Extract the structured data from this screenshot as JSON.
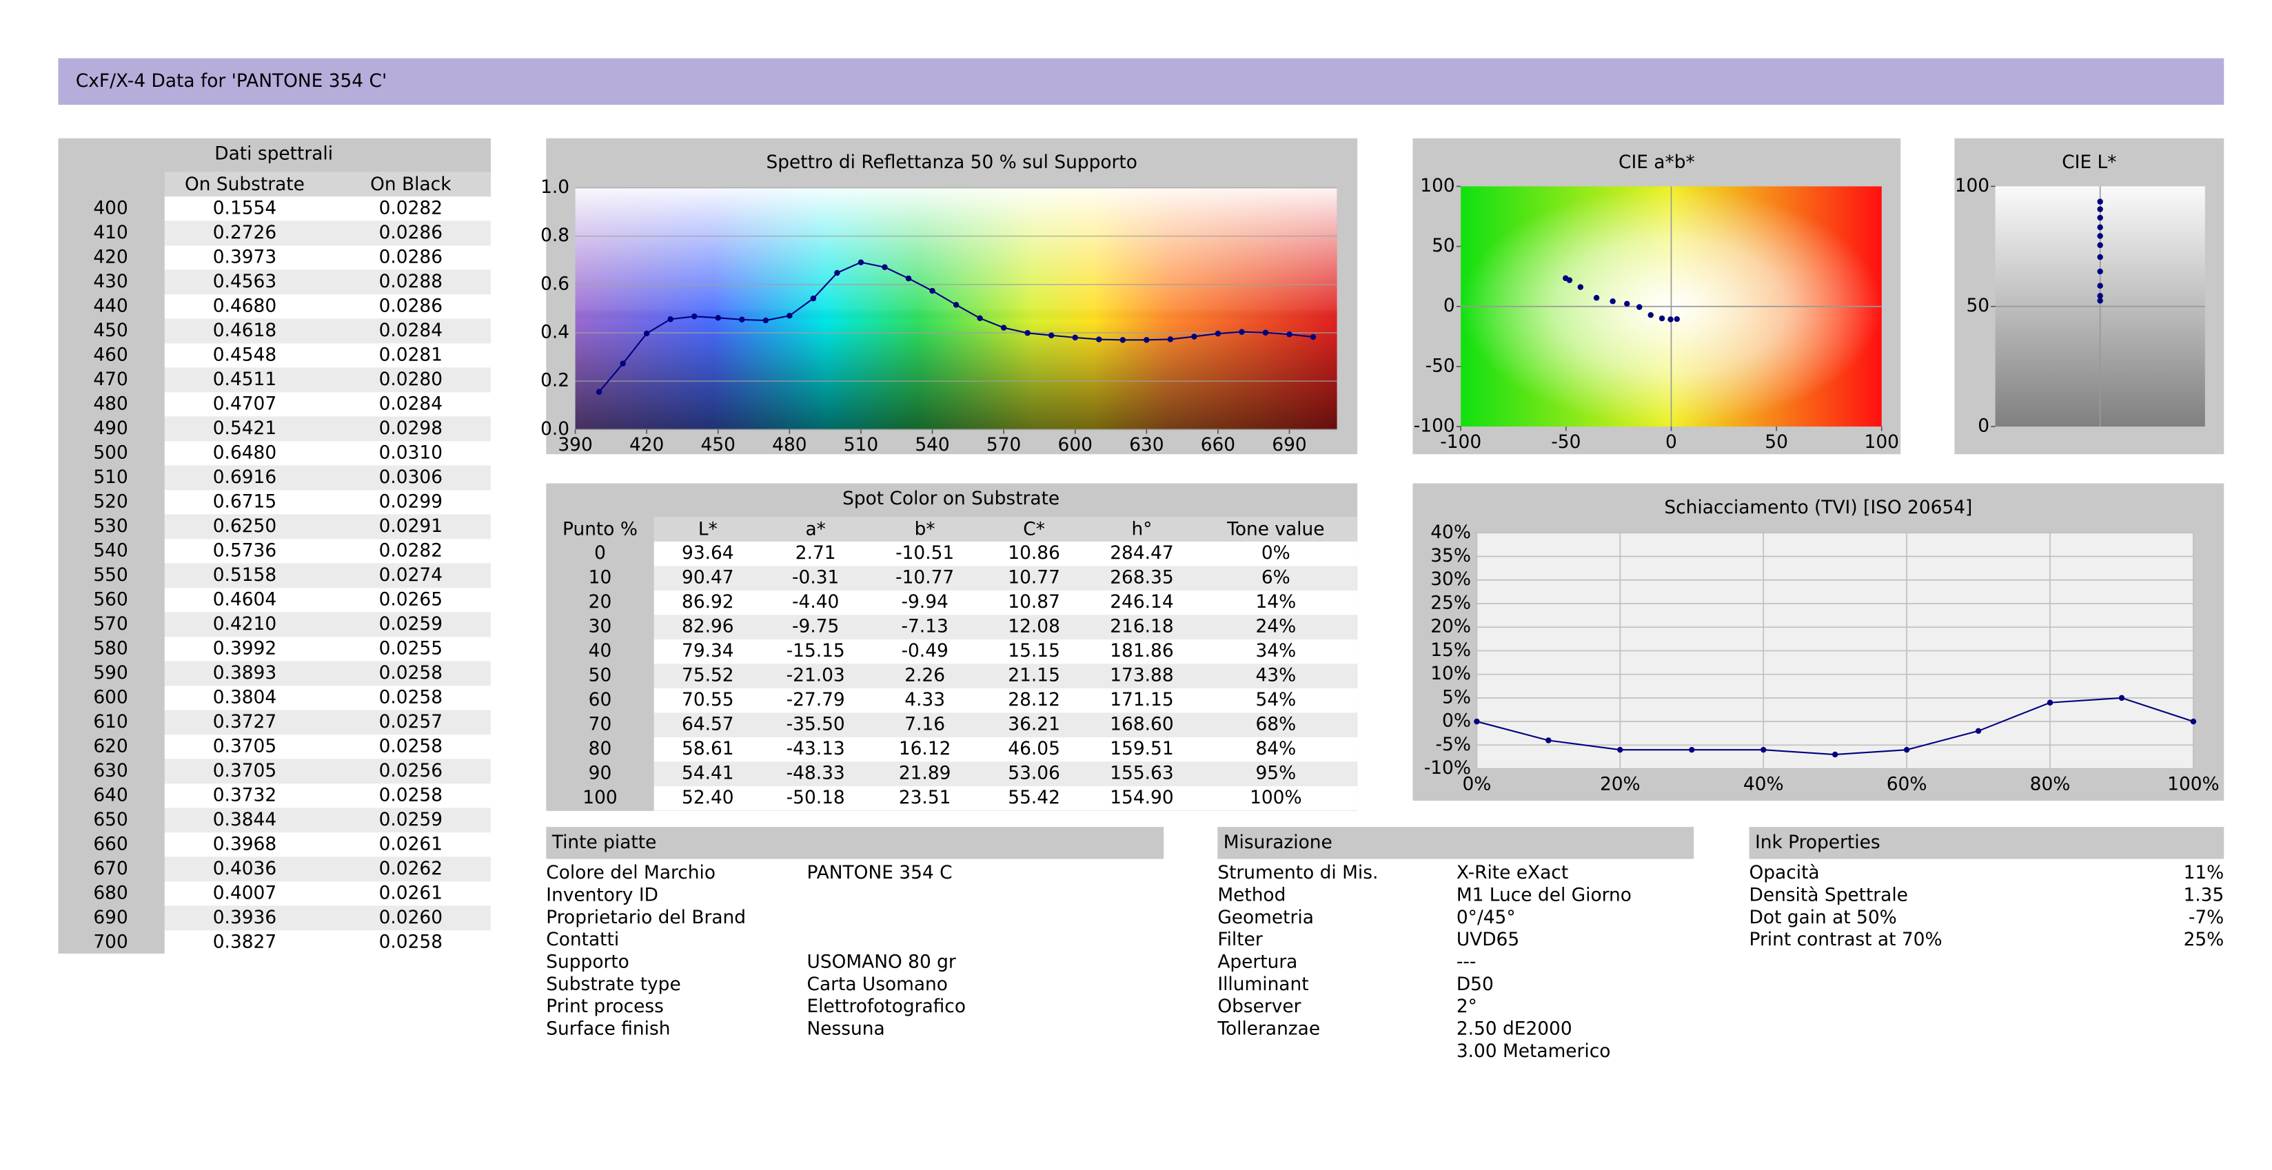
{
  "header": {
    "title": "CxF/X-4 Data for 'PANTONE 354 C'"
  },
  "spectral_table": {
    "title": "Dati spettrali",
    "columns": [
      "On Substrate",
      "On Black"
    ],
    "rows": [
      [
        "400",
        "0.1554",
        "0.0282"
      ],
      [
        "410",
        "0.2726",
        "0.0286"
      ],
      [
        "420",
        "0.3973",
        "0.0286"
      ],
      [
        "430",
        "0.4563",
        "0.0288"
      ],
      [
        "440",
        "0.4680",
        "0.0286"
      ],
      [
        "450",
        "0.4618",
        "0.0284"
      ],
      [
        "460",
        "0.4548",
        "0.0281"
      ],
      [
        "470",
        "0.4511",
        "0.0280"
      ],
      [
        "480",
        "0.4707",
        "0.0284"
      ],
      [
        "490",
        "0.5421",
        "0.0298"
      ],
      [
        "500",
        "0.6480",
        "0.0310"
      ],
      [
        "510",
        "0.6916",
        "0.0306"
      ],
      [
        "520",
        "0.6715",
        "0.0299"
      ],
      [
        "530",
        "0.6250",
        "0.0291"
      ],
      [
        "540",
        "0.5736",
        "0.0282"
      ],
      [
        "550",
        "0.5158",
        "0.0274"
      ],
      [
        "560",
        "0.4604",
        "0.0265"
      ],
      [
        "570",
        "0.4210",
        "0.0259"
      ],
      [
        "580",
        "0.3992",
        "0.0255"
      ],
      [
        "590",
        "0.3893",
        "0.0258"
      ],
      [
        "600",
        "0.3804",
        "0.0258"
      ],
      [
        "610",
        "0.3727",
        "0.0257"
      ],
      [
        "620",
        "0.3705",
        "0.0258"
      ],
      [
        "630",
        "0.3705",
        "0.0256"
      ],
      [
        "640",
        "0.3732",
        "0.0258"
      ],
      [
        "650",
        "0.3844",
        "0.0259"
      ],
      [
        "660",
        "0.3968",
        "0.0261"
      ],
      [
        "670",
        "0.4036",
        "0.0262"
      ],
      [
        "680",
        "0.4007",
        "0.0261"
      ],
      [
        "690",
        "0.3936",
        "0.0260"
      ],
      [
        "700",
        "0.3827",
        "0.0258"
      ]
    ]
  },
  "chart_data": [
    {
      "type": "line",
      "title": "Spettro di Reflettanza 50 % sul Supporto",
      "x": [
        400,
        410,
        420,
        430,
        440,
        450,
        460,
        470,
        480,
        490,
        500,
        510,
        520,
        530,
        540,
        550,
        560,
        570,
        580,
        590,
        600,
        610,
        620,
        630,
        640,
        650,
        660,
        670,
        680,
        690,
        700
      ],
      "values": [
        0.1554,
        0.2726,
        0.3973,
        0.4563,
        0.468,
        0.4618,
        0.4548,
        0.4511,
        0.4707,
        0.5421,
        0.648,
        0.6916,
        0.6715,
        0.625,
        0.5736,
        0.5158,
        0.4604,
        0.421,
        0.3992,
        0.3893,
        0.3804,
        0.3727,
        0.3705,
        0.3705,
        0.3732,
        0.3844,
        0.3968,
        0.4036,
        0.4007,
        0.3936,
        0.3827
      ],
      "xlim": [
        390,
        710
      ],
      "xticks": [
        390,
        420,
        450,
        480,
        510,
        540,
        570,
        600,
        630,
        660,
        690
      ],
      "ylim": [
        0,
        1
      ],
      "yticks": [
        {
          "value": 0,
          "label": "0.0"
        },
        0.2,
        0.4,
        0.6,
        0.8,
        {
          "value": 1,
          "label": "1.0"
        }
      ],
      "color": "#000080",
      "grid": true,
      "background": "spectrum"
    },
    {
      "type": "scatter",
      "title": "CIE a*b*",
      "x": [
        2.71,
        -0.31,
        -4.4,
        -9.75,
        -15.15,
        -21.03,
        -27.79,
        -35.5,
        -43.13,
        -48.33,
        -50.18
      ],
      "values": [
        -10.51,
        -10.77,
        -9.94,
        -7.13,
        -0.49,
        2.26,
        4.33,
        7.16,
        16.12,
        21.89,
        23.51
      ],
      "xlim": [
        -100,
        100
      ],
      "xticks": [
        -100,
        -50,
        0,
        50,
        100
      ],
      "ylim": [
        -100,
        100
      ],
      "yticks": [
        100,
        50,
        0,
        -50,
        -100
      ],
      "color": "#000080",
      "grid": false,
      "background": "ab"
    },
    {
      "type": "strip",
      "title": "CIE L*",
      "values": [
        93.64,
        90.47,
        86.92,
        82.96,
        79.34,
        75.52,
        70.55,
        64.57,
        58.61,
        54.41,
        52.4
      ],
      "ylim": [
        0,
        100
      ],
      "yticks": [
        100,
        50,
        0
      ],
      "color": "#000080",
      "grid": false,
      "background": "lightness"
    },
    {
      "type": "line",
      "title": "Schiacciamento (TVI) [ISO 20654]",
      "x": [
        0,
        10,
        20,
        30,
        40,
        50,
        60,
        70,
        80,
        90,
        100
      ],
      "values": [
        0,
        -4,
        -6,
        -6,
        -6,
        -7,
        -6,
        -2,
        4,
        5,
        0
      ],
      "xlim": [
        0,
        100
      ],
      "xticks": [
        {
          "value": 0,
          "label": "0%"
        },
        {
          "value": 20,
          "label": "20%"
        },
        {
          "value": 40,
          "label": "40%"
        },
        {
          "value": 60,
          "label": "60%"
        },
        {
          "value": 80,
          "label": "80%"
        },
        {
          "value": 100,
          "label": "100%"
        }
      ],
      "ylim": [
        -10,
        40
      ],
      "yticks": [
        {
          "value": 40,
          "label": "40%"
        },
        {
          "value": 35,
          "label": "35%"
        },
        {
          "value": 30,
          "label": "30%"
        },
        {
          "value": 25,
          "label": "25%"
        },
        {
          "value": 20,
          "label": "20%"
        },
        {
          "value": 15,
          "label": "15%"
        },
        {
          "value": 10,
          "label": "10%"
        },
        {
          "value": 5,
          "label": "5%"
        },
        {
          "value": 0,
          "label": "0%"
        },
        {
          "value": -5,
          "label": "-5%"
        },
        {
          "value": -10,
          "label": "-10%"
        }
      ],
      "color": "#000080",
      "grid": true,
      "background": "plain"
    }
  ],
  "spot_table": {
    "title": "Spot Color on Substrate",
    "columns": [
      "Punto %",
      "L*",
      "a*",
      "b*",
      "C*",
      "h°",
      "Tone value"
    ],
    "rows": [
      [
        "0",
        "93.64",
        "2.71",
        "-10.51",
        "10.86",
        "284.47",
        "0%"
      ],
      [
        "10",
        "90.47",
        "-0.31",
        "-10.77",
        "10.77",
        "268.35",
        "6%"
      ],
      [
        "20",
        "86.92",
        "-4.40",
        "-9.94",
        "10.87",
        "246.14",
        "14%"
      ],
      [
        "30",
        "82.96",
        "-9.75",
        "-7.13",
        "12.08",
        "216.18",
        "24%"
      ],
      [
        "40",
        "79.34",
        "-15.15",
        "-0.49",
        "15.15",
        "181.86",
        "34%"
      ],
      [
        "50",
        "75.52",
        "-21.03",
        "2.26",
        "21.15",
        "173.88",
        "43%"
      ],
      [
        "60",
        "70.55",
        "-27.79",
        "4.33",
        "28.12",
        "171.15",
        "54%"
      ],
      [
        "70",
        "64.57",
        "-35.50",
        "7.16",
        "36.21",
        "168.60",
        "68%"
      ],
      [
        "80",
        "58.61",
        "-43.13",
        "16.12",
        "46.05",
        "159.51",
        "84%"
      ],
      [
        "90",
        "54.41",
        "-48.33",
        "21.89",
        "53.06",
        "155.63",
        "95%"
      ],
      [
        "100",
        "52.40",
        "-50.18",
        "23.51",
        "55.42",
        "154.90",
        "100%"
      ]
    ]
  },
  "sections": [
    {
      "title": "Tinte piatte",
      "rows": [
        [
          "Colore del Marchio",
          "PANTONE 354 C"
        ],
        [
          "Inventory ID"
        ],
        [
          "Proprietario del Brand"
        ],
        [
          "Contatti"
        ],
        [
          "Supporto",
          "USOMANO 80 gr"
        ],
        [
          "Substrate type",
          "Carta Usomano"
        ],
        [
          "Print process",
          "Elettrofotografico"
        ],
        [
          "Surface finish",
          "Nessuna"
        ]
      ]
    },
    {
      "title": "Misurazione",
      "rows": [
        [
          "Strumento di Mis.",
          "X-Rite eXact"
        ],
        [
          "Method",
          "M1 Luce del Giorno"
        ],
        [
          "Geometria",
          "0°/45°"
        ],
        [
          "Filter",
          "UVD65"
        ],
        [
          "Apertura",
          "---"
        ],
        [
          "Illuminant",
          "D50"
        ],
        [
          "Observer",
          "2°"
        ],
        [
          "Tolleranzae",
          "2.50 dE2000",
          "3.00 Metamerico"
        ]
      ]
    },
    {
      "title": "Ink Properties",
      "rows": [
        [
          "Opacità",
          "11%"
        ],
        [
          "Densità Spettrale",
          "1.35"
        ],
        [
          "Dot gain at 50%",
          "-7%"
        ],
        [
          "Print contrast at 70%",
          "25%"
        ]
      ]
    }
  ]
}
